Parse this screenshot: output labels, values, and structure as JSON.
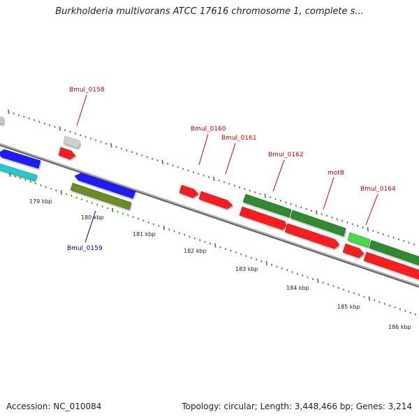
{
  "title": "Burkholderia multivorans ATCC 17616 chromosome 1, complete s...",
  "footer": {
    "accession": "Accession: NC_010084",
    "stats": "Topology: circular; Length: 3,448,466 bp; Genes: 3,214"
  },
  "scale_labels": [
    "179 kbp",
    "180 kbp",
    "181 kbp",
    "182 kbp",
    "183 kbp",
    "184 kbp",
    "185 kbp",
    "186 kbp"
  ],
  "gene_labels": [
    {
      "text": "Bmul_0158",
      "color": "#cc0000"
    },
    {
      "text": "Bmul_0159",
      "color": "#000099"
    },
    {
      "text": "Bmul_0160",
      "color": "#cc0000"
    },
    {
      "text": "Bmul_0161",
      "color": "#cc0000"
    },
    {
      "text": "Bmul_0162",
      "color": "#cc0000"
    },
    {
      "text": "motB",
      "color": "#cc0000"
    },
    {
      "text": "Bmul_0164",
      "color": "#cc0000"
    }
  ],
  "colors": {
    "red": "#ff1a1a",
    "blue": "#1a1aff",
    "cyan": "#22cccc",
    "olive": "#6b8e23",
    "darkgreen": "#2e8b2e",
    "lightgreen": "#44dd44",
    "gray": "#bbbbbb",
    "backbone": "#888888",
    "tick": "#228b22"
  }
}
